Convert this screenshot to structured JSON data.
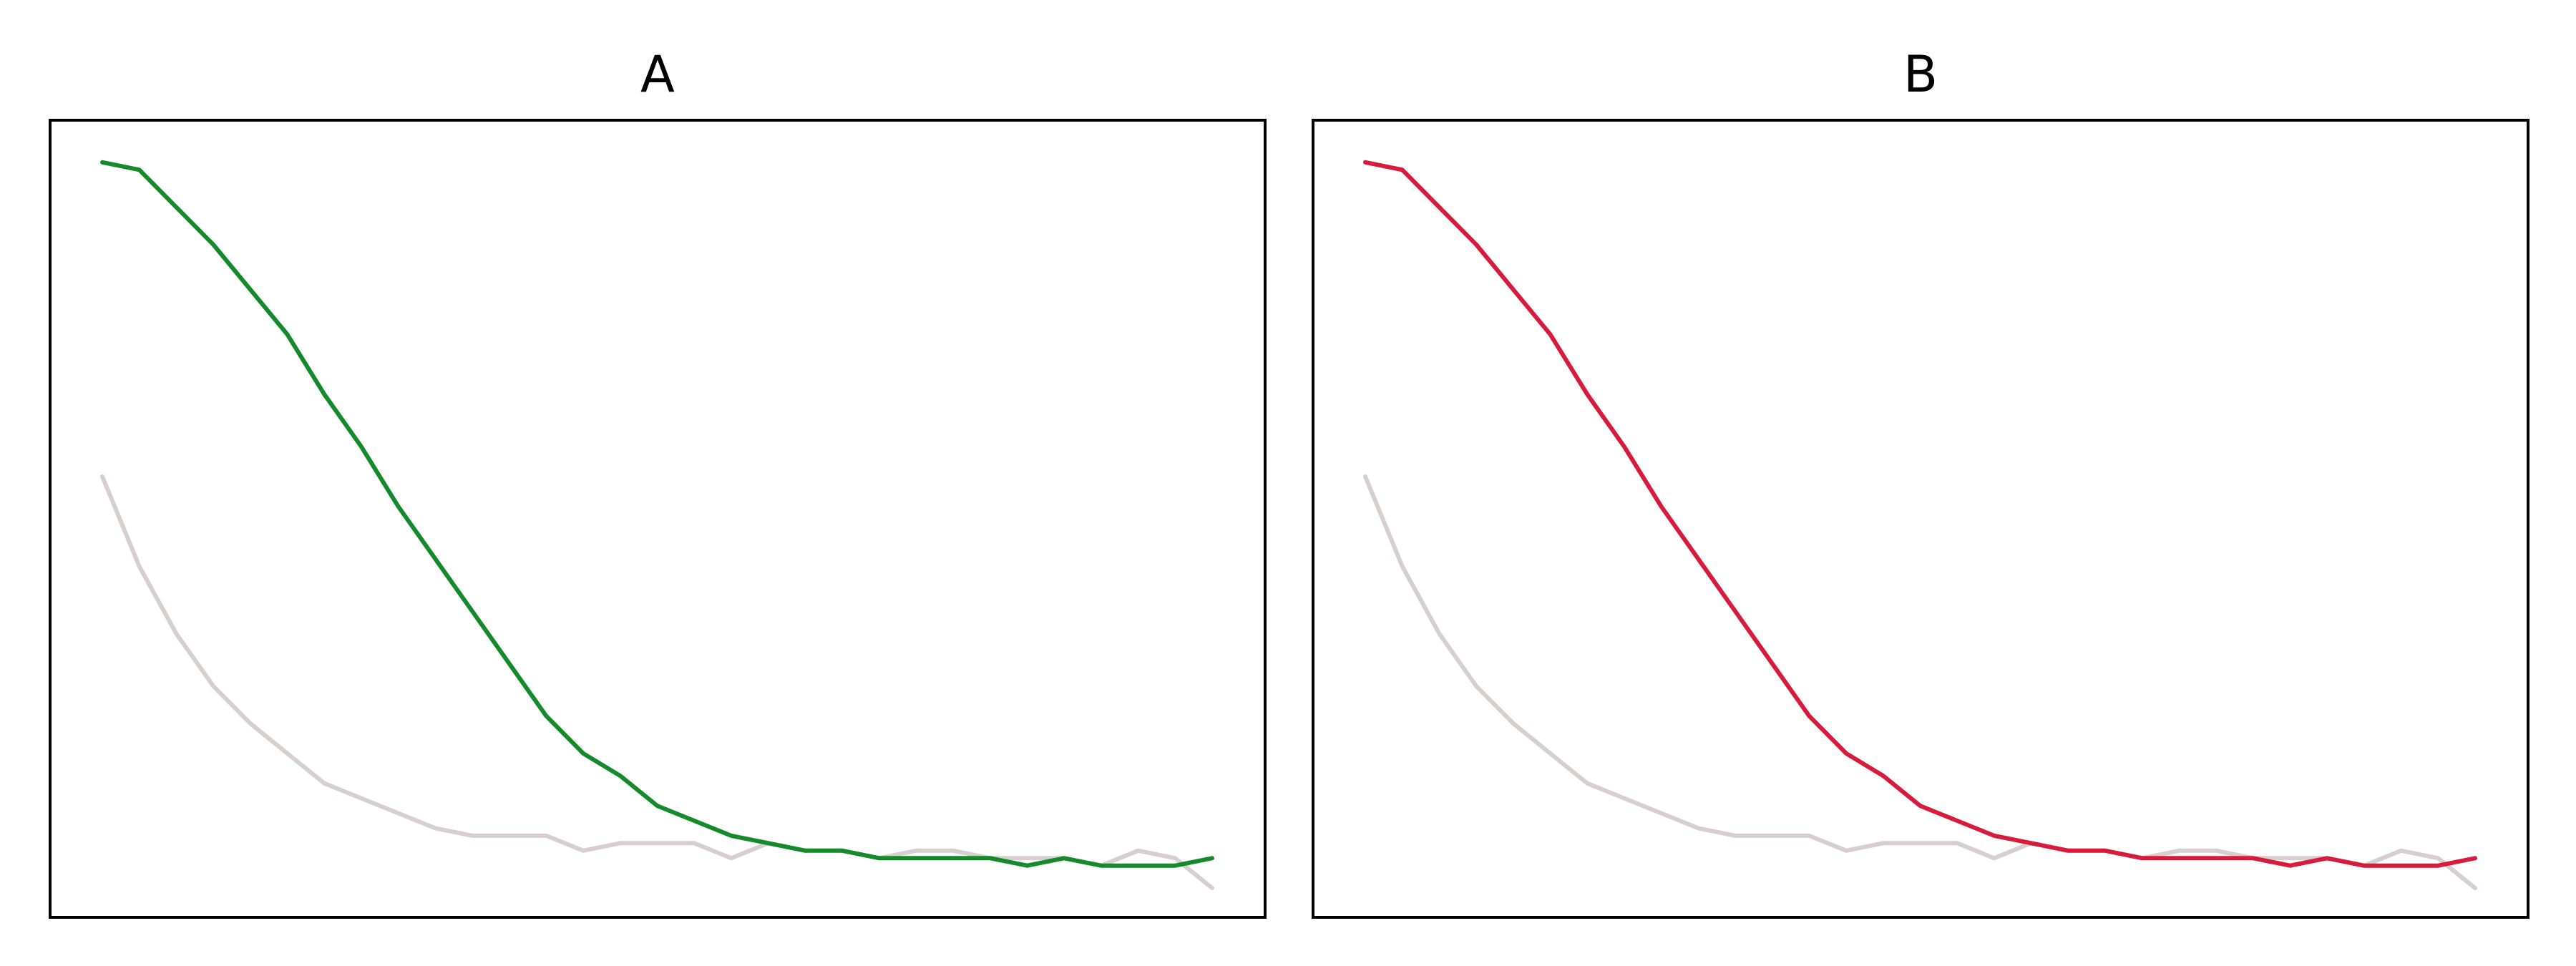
{
  "chart_data": [
    {
      "type": "line",
      "title": "A",
      "x_range": [
        0,
        300
      ],
      "y_range": [
        0,
        1.03
      ],
      "grid": false,
      "legend": "none",
      "series": [
        {
          "color": "#d7cfcf",
          "x": [
            0,
            10,
            20,
            30,
            40,
            50,
            60,
            70,
            80,
            90,
            100,
            110,
            120,
            130,
            140,
            150,
            160,
            170,
            180,
            190,
            200,
            210,
            220,
            230,
            240,
            250,
            260,
            270,
            280,
            290,
            300
          ],
          "y": [
            0.57,
            0.45,
            0.36,
            0.29,
            0.24,
            0.2,
            0.16,
            0.14,
            0.12,
            0.1,
            0.09,
            0.09,
            0.09,
            0.07,
            0.08,
            0.08,
            0.08,
            0.06,
            0.08,
            0.07,
            0.07,
            0.06,
            0.07,
            0.07,
            0.06,
            0.06,
            0.06,
            0.05,
            0.07,
            0.06,
            0.02
          ]
        },
        {
          "color": "#148a2a",
          "x": [
            0,
            10,
            20,
            30,
            40,
            50,
            60,
            70,
            80,
            90,
            100,
            110,
            120,
            130,
            140,
            150,
            160,
            170,
            180,
            190,
            200,
            210,
            220,
            230,
            240,
            250,
            260,
            270,
            280,
            290,
            300
          ],
          "y": [
            0.99,
            0.98,
            0.93,
            0.88,
            0.82,
            0.76,
            0.68,
            0.61,
            0.53,
            0.46,
            0.39,
            0.32,
            0.25,
            0.2,
            0.17,
            0.13,
            0.11,
            0.09,
            0.08,
            0.07,
            0.07,
            0.06,
            0.06,
            0.06,
            0.06,
            0.05,
            0.06,
            0.05,
            0.05,
            0.05,
            0.06
          ]
        }
      ]
    },
    {
      "type": "line",
      "title": "B",
      "x_range": [
        0,
        300
      ],
      "y_range": [
        0,
        1.03
      ],
      "grid": false,
      "legend": "none",
      "series": [
        {
          "color": "#d7cfcf",
          "x": [
            0,
            10,
            20,
            30,
            40,
            50,
            60,
            70,
            80,
            90,
            100,
            110,
            120,
            130,
            140,
            150,
            160,
            170,
            180,
            190,
            200,
            210,
            220,
            230,
            240,
            250,
            260,
            270,
            280,
            290,
            300
          ],
          "y": [
            0.57,
            0.45,
            0.36,
            0.29,
            0.24,
            0.2,
            0.16,
            0.14,
            0.12,
            0.1,
            0.09,
            0.09,
            0.09,
            0.07,
            0.08,
            0.08,
            0.08,
            0.06,
            0.08,
            0.07,
            0.07,
            0.06,
            0.07,
            0.07,
            0.06,
            0.06,
            0.06,
            0.05,
            0.07,
            0.06,
            0.02
          ]
        },
        {
          "color": "#d81b3c",
          "x": [
            0,
            10,
            20,
            30,
            40,
            50,
            60,
            70,
            80,
            90,
            100,
            110,
            120,
            130,
            140,
            150,
            160,
            170,
            180,
            190,
            200,
            210,
            220,
            230,
            240,
            250,
            260,
            270,
            280,
            290,
            300
          ],
          "y": [
            0.99,
            0.98,
            0.93,
            0.88,
            0.82,
            0.76,
            0.68,
            0.61,
            0.53,
            0.46,
            0.39,
            0.32,
            0.25,
            0.2,
            0.17,
            0.13,
            0.11,
            0.09,
            0.08,
            0.07,
            0.07,
            0.06,
            0.06,
            0.06,
            0.06,
            0.05,
            0.06,
            0.05,
            0.05,
            0.05,
            0.06
          ]
        }
      ]
    }
  ]
}
